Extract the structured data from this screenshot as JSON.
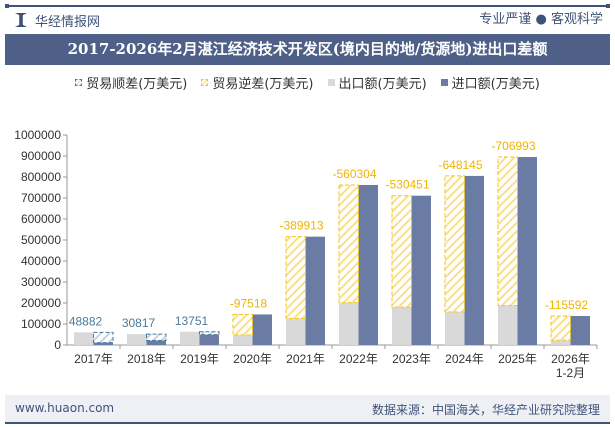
{
  "header": {
    "brand": "华经情报网",
    "slogan": "专业严谨 ● 客观科学"
  },
  "footer": {
    "website": "www.huaon.com",
    "source": "数据来源：中国海关，华经产业研究院整理"
  },
  "colors": {
    "surplus": "#4a7a9a",
    "deficit": "#f5c518",
    "export": "#d9d9d9",
    "import": "#6a7ca3",
    "title_bar": "#4e6088"
  },
  "chart_data": {
    "type": "bar",
    "title": "2017-2026年2月湛江经济技术开发区(境内目的地/货源地)进出口差额",
    "categories": [
      "2017年",
      "2018年",
      "2019年",
      "2020年",
      "2021年",
      "2022年",
      "2023年",
      "2024年",
      "2025年",
      "2026年\n1-2月"
    ],
    "category_labels": [
      [
        "2017年"
      ],
      [
        "2018年"
      ],
      [
        "2019年"
      ],
      [
        "2020年"
      ],
      [
        "2021年"
      ],
      [
        "2022年"
      ],
      [
        "2023年"
      ],
      [
        "2024年"
      ],
      [
        "2025年"
      ],
      [
        "2026年",
        "1-2月"
      ]
    ],
    "ylim": [
      0,
      1000000
    ],
    "yticks": [
      "0",
      "100000",
      "200000",
      "300000",
      "400000",
      "500000",
      "600000",
      "700000",
      "800000",
      "900000",
      "1000000"
    ],
    "grid": false,
    "legend_position": "top",
    "series": [
      {
        "name": "出口额(万美元)",
        "values": [
          60000,
          52000,
          63000,
          48000,
          126000,
          201700,
          180500,
          157000,
          188000,
          22400
        ]
      },
      {
        "name": "进口额(万美元)",
        "values": [
          11118,
          21183,
          49249,
          145518,
          515913,
          762004,
          710951,
          805145,
          894993,
          137992
        ]
      }
    ],
    "balance": {
      "values": [
        48882,
        30817,
        13751,
        -97518,
        -389913,
        -560304,
        -530451,
        -648145,
        -706993,
        -115592
      ],
      "labels": [
        "48882",
        "30817",
        "13751",
        "-97518",
        "-389913",
        "-560304",
        "-530451",
        "-648145",
        "-706993",
        "-115592"
      ]
    },
    "legend": [
      "贸易顺差(万美元)",
      "贸易逆差(万美元)",
      "出口额(万美元)",
      "进口额(万美元)"
    ]
  }
}
